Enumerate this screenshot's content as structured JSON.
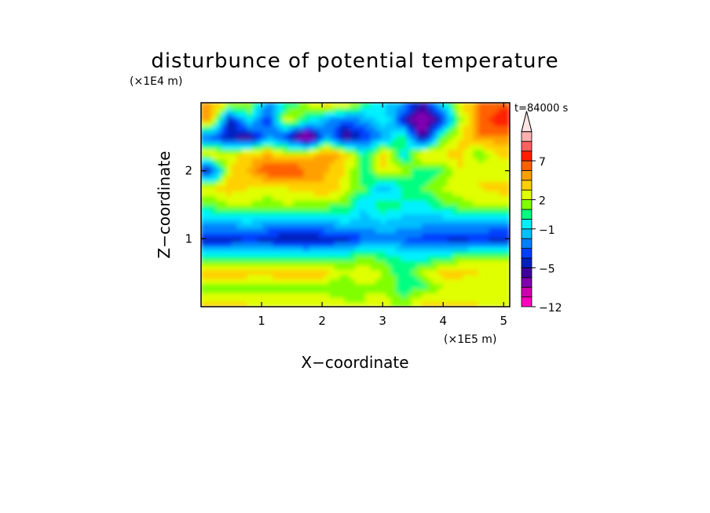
{
  "chart_data": {
    "type": "heatmap",
    "title": "disturbunce of potential temperature",
    "xlabel": "X−coordinate",
    "ylabel": "Z−coordinate",
    "x_unit": "(×1E5 m)",
    "y_unit": "(×1E4 m)",
    "time_label": "t=84000 s",
    "xlim": [
      0,
      5.1
    ],
    "ylim": [
      0,
      3.0
    ],
    "x_ticks": [
      1,
      2,
      3,
      4,
      5
    ],
    "x_tick_labels": [
      "1",
      "2",
      "3",
      "4",
      "5"
    ],
    "y_ticks": [
      1,
      2
    ],
    "y_tick_labels": [
      "1",
      "2"
    ],
    "colorbar": {
      "levels": [
        -12,
        -10,
        -8,
        -6,
        -5,
        -4,
        -3,
        -2,
        -1,
        0,
        1,
        2,
        3,
        4,
        5,
        7,
        9,
        11,
        13
      ],
      "tick_values": [
        -12,
        -5,
        -1,
        2,
        7
      ],
      "tick_labels": [
        "−12",
        "−5",
        "−1",
        "2",
        "7"
      ],
      "colors": [
        "#ff00c0",
        "#d000b0",
        "#8000b0",
        "#4000a0",
        "#0020c0",
        "#0040ff",
        "#0080ff",
        "#00c0ff",
        "#00f0ff",
        "#00ff80",
        "#80ff00",
        "#e0ff00",
        "#ffd000",
        "#ffa000",
        "#ff6000",
        "#ff2000",
        "#ff6060",
        "#ffb0b0"
      ],
      "over_color": "#ffe4e4"
    },
    "rows": [
      {
        "z": 0.1,
        "anom": [
          3,
          3,
          3,
          2.5,
          2.5,
          3,
          2.5,
          2,
          2,
          2.5,
          1,
          3,
          3,
          3,
          3,
          2.5
        ]
      },
      {
        "z": 0.3,
        "anom": [
          1,
          1.5,
          1.5,
          1.5,
          1.5,
          1.5,
          1.5,
          1,
          2,
          1.5,
          0.5,
          0.5,
          2,
          2,
          2,
          2
        ]
      },
      {
        "z": 0.5,
        "anom": [
          4,
          4,
          3.5,
          3.5,
          4,
          4,
          3.5,
          2,
          3,
          2,
          0,
          2,
          3.5,
          3.5,
          3,
          3
        ]
      },
      {
        "z": 0.75,
        "anom": [
          0,
          0,
          0.5,
          0.5,
          0.5,
          0,
          0,
          0.5,
          1,
          0.5,
          0,
          -0.5,
          0,
          1,
          1.5,
          1.5
        ]
      },
      {
        "z": 1.0,
        "anom": [
          -4.5,
          -4.5,
          -4,
          -4.5,
          -5,
          -5,
          -4.5,
          -4.5,
          -3,
          -2.5,
          -3,
          -3.5,
          -4,
          -4.5,
          -4,
          -4.5
        ]
      },
      {
        "z": 1.25,
        "anom": [
          -1.5,
          -1.5,
          -1,
          -1.5,
          -1.5,
          -2,
          -1.5,
          -1,
          -1.5,
          -1,
          -1.5,
          -1.5,
          -2,
          -1.5,
          -1.5,
          -2
        ]
      },
      {
        "z": 1.5,
        "anom": [
          1,
          2,
          2,
          1.5,
          2,
          1.5,
          1.5,
          1,
          -1,
          1,
          0,
          -0.5,
          1,
          1.5,
          2,
          2
        ]
      },
      {
        "z": 1.75,
        "anom": [
          3,
          3.5,
          3,
          2.5,
          3,
          3.5,
          4,
          2.5,
          1,
          -2,
          0,
          1,
          2,
          2.5,
          3,
          3.5
        ]
      },
      {
        "z": 2.0,
        "anom": [
          -4.5,
          3,
          4,
          6,
          7,
          5,
          4,
          3,
          0,
          3,
          2,
          0,
          1,
          3,
          3,
          2
        ]
      },
      {
        "z": 2.25,
        "anom": [
          3,
          2.5,
          3.5,
          4,
          2.5,
          3.5,
          5,
          3.5,
          0,
          3.5,
          -0.5,
          3.5,
          3,
          3.5,
          1,
          3.5
        ]
      },
      {
        "z": 2.5,
        "anom": [
          -3,
          -5,
          -6,
          -2,
          -4,
          -8,
          -2,
          -6,
          -4,
          -2,
          1,
          -6,
          1,
          3,
          5,
          4.5
        ]
      },
      {
        "z": 2.75,
        "anom": [
          4.5,
          -5,
          0,
          -4,
          3,
          0,
          -2,
          -3,
          -2,
          0,
          -4,
          -8,
          -4,
          2,
          5,
          9
        ]
      },
      {
        "z": 3.0,
        "anom": [
          4,
          3,
          2,
          -2,
          0,
          2,
          4,
          3,
          1,
          -1,
          -2,
          -5,
          -1,
          3,
          5,
          6
        ]
      }
    ]
  }
}
